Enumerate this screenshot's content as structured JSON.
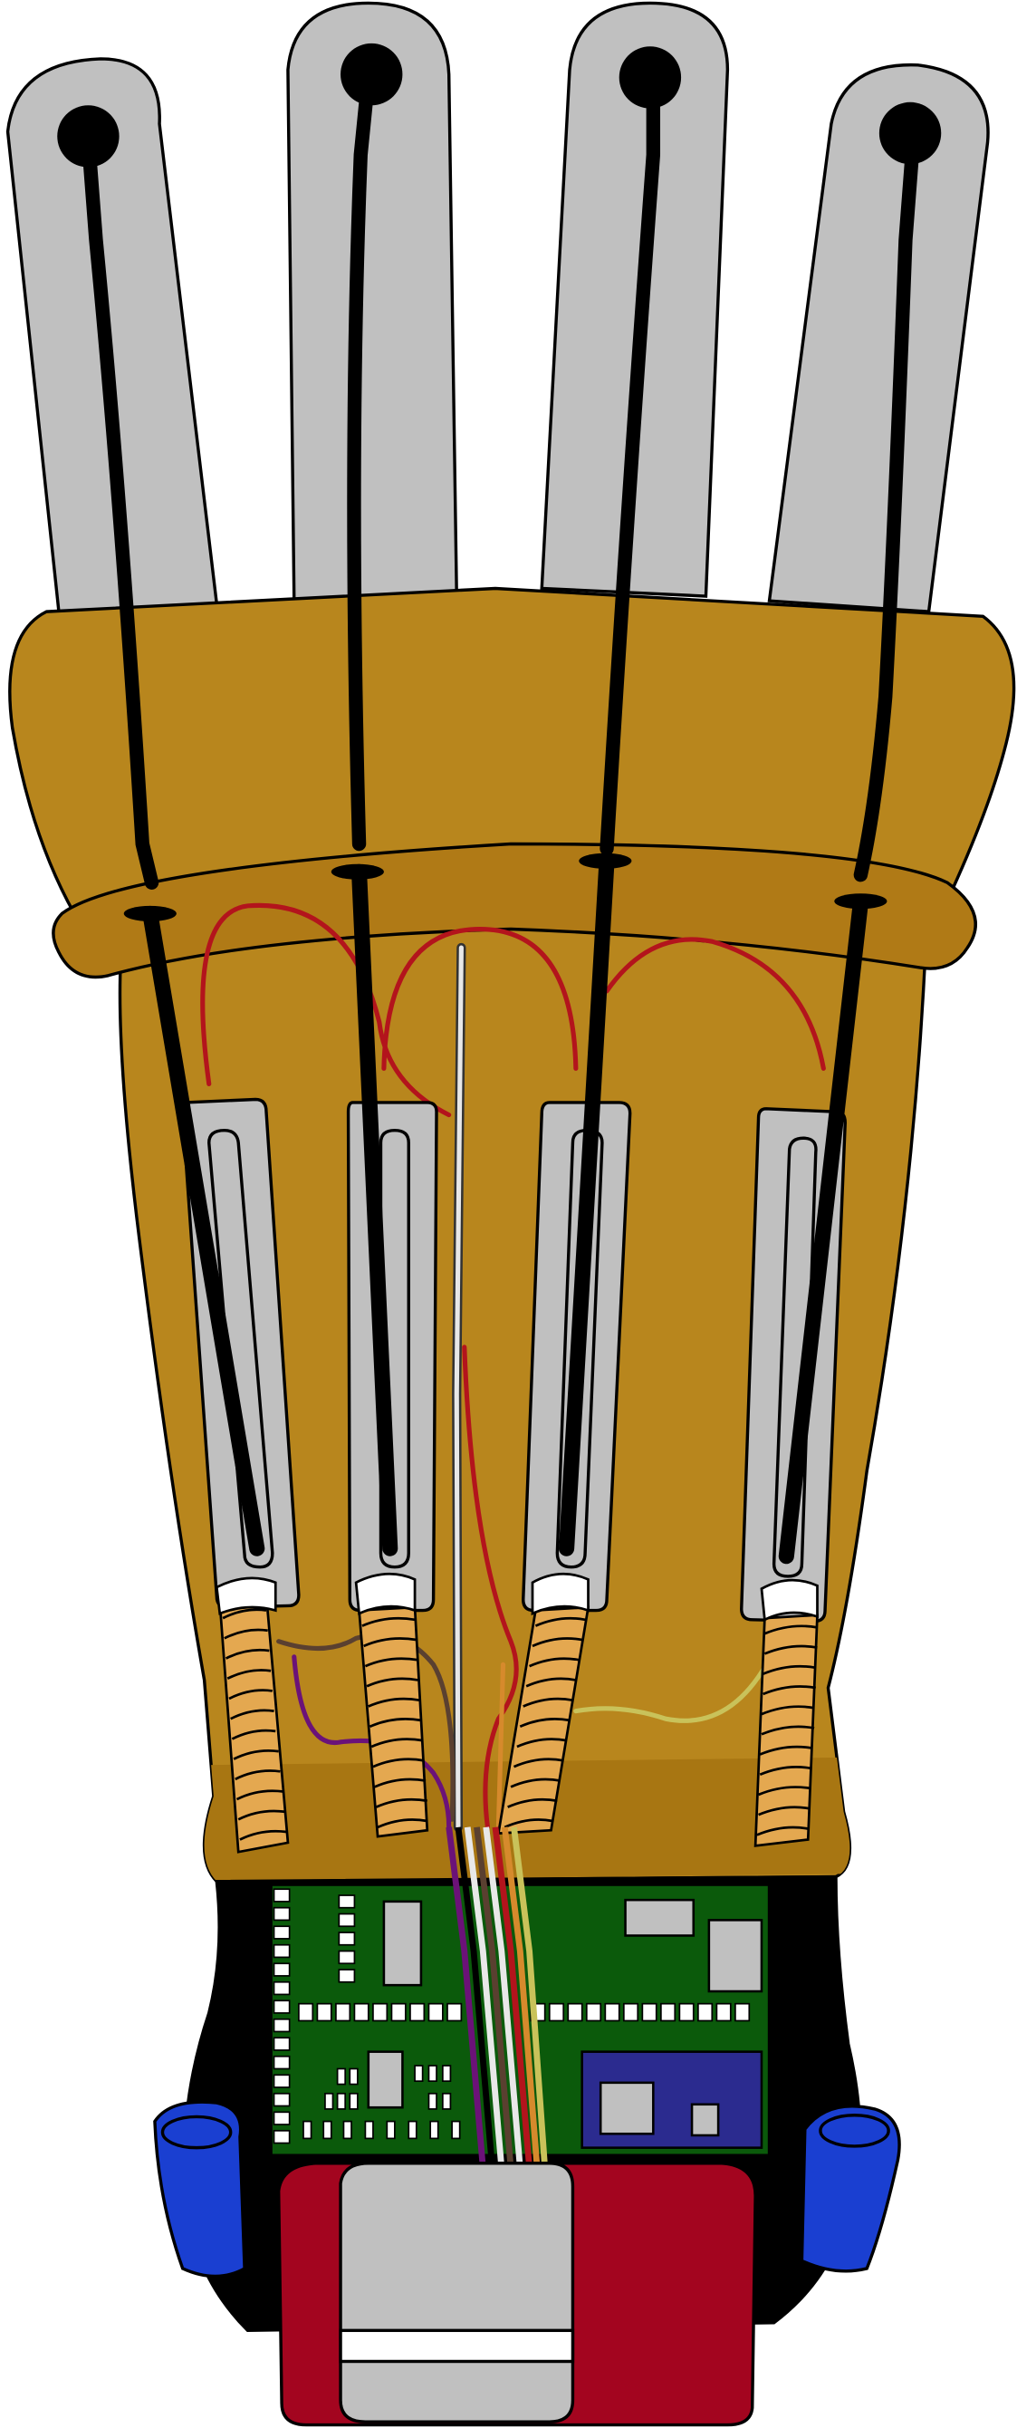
{
  "illustration": {
    "fingers": 4,
    "tendons": 4,
    "springs": 4,
    "slider_sensors": 4,
    "colors": {
      "finger_plate": "#c0c0c0",
      "glove_leather": "#b8861d",
      "glove_shadow": "#a87612",
      "outline": "#000000",
      "tendon": "#000000",
      "circuit_board": "#0b5a0b",
      "chip_module": "#2b2b8f",
      "battery_case": "#a3051f",
      "battery_window": "#c0c0c0",
      "wrist_strap_buckle": "#1a3fd1",
      "wire_red": "#b3141c",
      "wire_purple": "#6b1278",
      "wire_brown": "#5a4030",
      "wire_yellow": "#c9c25a",
      "wire_white": "#e8e8e8",
      "spring": "#e4a850"
    }
  }
}
